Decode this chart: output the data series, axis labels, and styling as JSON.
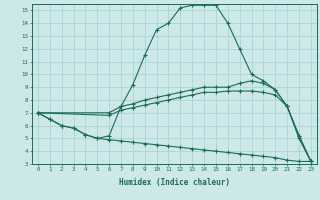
{
  "title": "",
  "xlabel": "Humidex (Indice chaleur)",
  "bg_color": "#cce8e8",
  "line_color": "#1a6b5a",
  "grid_color": "#aad4d4",
  "xlim": [
    -0.5,
    23.5
  ],
  "ylim": [
    3,
    15.5
  ],
  "xticks": [
    0,
    1,
    2,
    3,
    4,
    5,
    6,
    7,
    8,
    9,
    10,
    11,
    12,
    13,
    14,
    15,
    16,
    17,
    18,
    19,
    20,
    21,
    22,
    23
  ],
  "yticks": [
    3,
    4,
    5,
    6,
    7,
    8,
    9,
    10,
    11,
    12,
    13,
    14,
    15
  ],
  "curve1_x": [
    0,
    1,
    2,
    3,
    4,
    5,
    6,
    7,
    8,
    9,
    10,
    11,
    12,
    13,
    14,
    15,
    16,
    17,
    18,
    19,
    20,
    21,
    22,
    23
  ],
  "curve1_y": [
    7.0,
    6.5,
    6.0,
    5.8,
    5.3,
    5.0,
    5.2,
    7.5,
    9.2,
    11.5,
    13.5,
    14.0,
    15.2,
    15.4,
    15.4,
    15.4,
    14.0,
    12.0,
    10.0,
    9.5,
    8.8,
    7.5,
    5.0,
    3.2
  ],
  "curve2_x": [
    0,
    6,
    7,
    8,
    9,
    10,
    11,
    12,
    13,
    14,
    15,
    16,
    17,
    18,
    19,
    20,
    21,
    22,
    23
  ],
  "curve2_y": [
    7.0,
    7.0,
    7.5,
    7.7,
    8.0,
    8.2,
    8.4,
    8.6,
    8.8,
    9.0,
    9.0,
    9.0,
    9.3,
    9.5,
    9.3,
    8.8,
    7.5,
    5.2,
    3.2
  ],
  "curve3_x": [
    0,
    6,
    7,
    8,
    9,
    10,
    11,
    12,
    13,
    14,
    15,
    16,
    17,
    18,
    19,
    20,
    21,
    22,
    23
  ],
  "curve3_y": [
    7.0,
    6.8,
    7.2,
    7.4,
    7.6,
    7.8,
    8.0,
    8.2,
    8.4,
    8.6,
    8.6,
    8.7,
    8.7,
    8.7,
    8.6,
    8.4,
    7.5,
    5.2,
    3.2
  ],
  "curve4_x": [
    0,
    1,
    2,
    3,
    4,
    5,
    6,
    7,
    8,
    9,
    10,
    11,
    12,
    13,
    14,
    15,
    16,
    17,
    18,
    19,
    20,
    21,
    22,
    23
  ],
  "curve4_y": [
    7.0,
    6.5,
    6.0,
    5.8,
    5.3,
    5.0,
    4.9,
    4.8,
    4.7,
    4.6,
    4.5,
    4.4,
    4.3,
    4.2,
    4.1,
    4.0,
    3.9,
    3.8,
    3.7,
    3.6,
    3.5,
    3.3,
    3.2,
    3.2
  ]
}
